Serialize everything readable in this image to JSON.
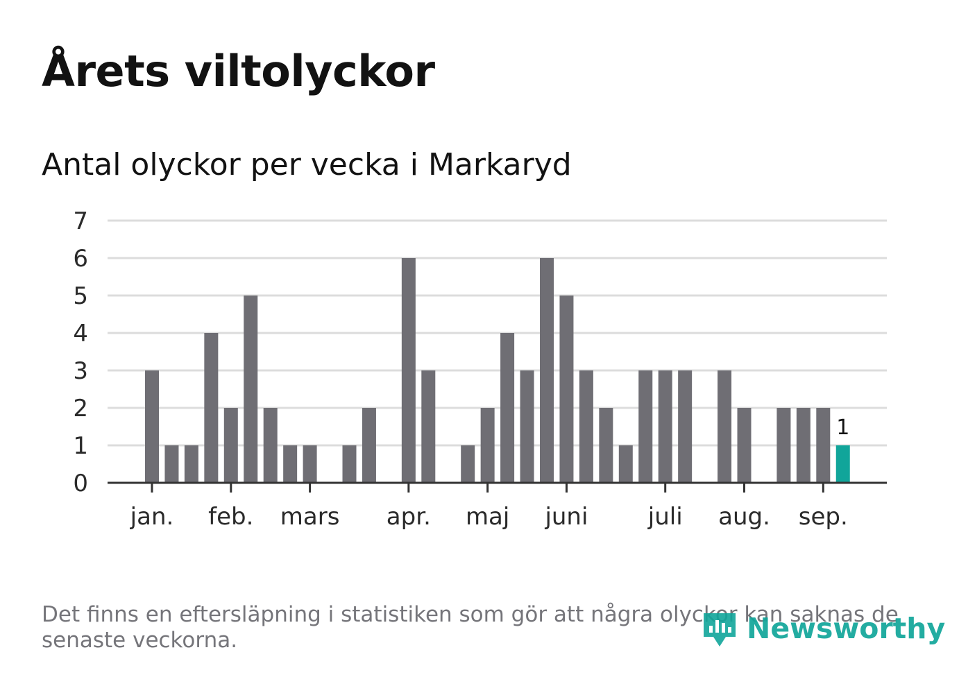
{
  "title": "Årets viltolyckor",
  "subtitle": "Antal olyckor per vecka i Markaryd",
  "footnote": "Det finns en eftersläpning i statistiken som gör att några olyckor kan saknas de senaste veckorna.",
  "brand": "Newsworthy",
  "colors": {
    "bar": "#6f6e74",
    "highlight": "#11a59a",
    "grid": "#dcdcdc",
    "axis": "#333333"
  },
  "chart_data": {
    "type": "bar",
    "title": "Antal olyckor per vecka i Markaryd",
    "xlabel": "",
    "ylabel": "",
    "ylim": [
      0,
      7
    ],
    "yticks": [
      0,
      1,
      2,
      3,
      4,
      5,
      6,
      7
    ],
    "grid": true,
    "x": [
      1,
      2,
      3,
      4,
      5,
      6,
      7,
      8,
      9,
      10,
      11,
      12,
      13,
      14,
      15,
      16,
      17,
      18,
      19,
      20,
      21,
      22,
      23,
      24,
      25,
      26,
      27,
      28,
      29,
      30,
      31,
      32,
      33,
      34,
      35,
      36,
      37,
      38
    ],
    "values": [
      3,
      1,
      1,
      4,
      2,
      5,
      2,
      1,
      1,
      0,
      1,
      2,
      0,
      6,
      3,
      0,
      1,
      2,
      4,
      3,
      6,
      5,
      3,
      2,
      1,
      3,
      3,
      3,
      0,
      3,
      2,
      0,
      2,
      2,
      2,
      1,
      0,
      0
    ],
    "highlight_index": 35,
    "highlight_label": "1",
    "month_labels": [
      {
        "label": "jan.",
        "week": 1
      },
      {
        "label": "feb.",
        "week": 5
      },
      {
        "label": "mars",
        "week": 9
      },
      {
        "label": "apr.",
        "week": 14
      },
      {
        "label": "maj",
        "week": 18
      },
      {
        "label": "juni",
        "week": 22
      },
      {
        "label": "juli",
        "week": 27
      },
      {
        "label": "aug.",
        "week": 31
      },
      {
        "label": "sep.",
        "week": 35
      }
    ]
  }
}
